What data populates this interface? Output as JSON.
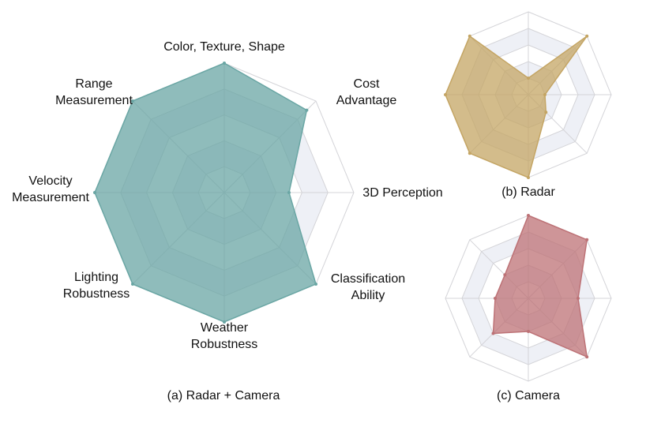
{
  "colors": {
    "combined": "#6aa6a4",
    "radar": "#c4a564",
    "camera": "#bd7276",
    "grid_fill": "#eef0f6",
    "grid_line": "#d4d4d8"
  },
  "chart_data": [
    {
      "type": "radar",
      "id": "a",
      "caption": "(a) Radar + Camera",
      "axes": [
        "Color, Texture, Shape",
        "Cost\nAdvantage",
        "3D Perception",
        "Classification\nAbility",
        "Weather\nRobustness",
        "Lighting\nRobustness",
        "Velocity\nMeasurement",
        "Range\nMeasurement"
      ],
      "levels": 5,
      "range": [
        0,
        5
      ],
      "values": [
        5,
        4.5,
        2.5,
        5,
        5,
        5,
        5,
        5
      ],
      "show_labels": true
    },
    {
      "type": "radar",
      "id": "b",
      "caption": "(b) Radar",
      "levels": 5,
      "range": [
        0,
        5
      ],
      "values": [
        1,
        5,
        1,
        1.5,
        5,
        5,
        5,
        5
      ],
      "show_labels": false
    },
    {
      "type": "radar",
      "id": "c",
      "caption": "(c) Camera",
      "levels": 5,
      "range": [
        0,
        5
      ],
      "values": [
        5,
        5,
        3,
        5,
        2,
        3,
        2,
        2
      ],
      "show_labels": false
    }
  ]
}
